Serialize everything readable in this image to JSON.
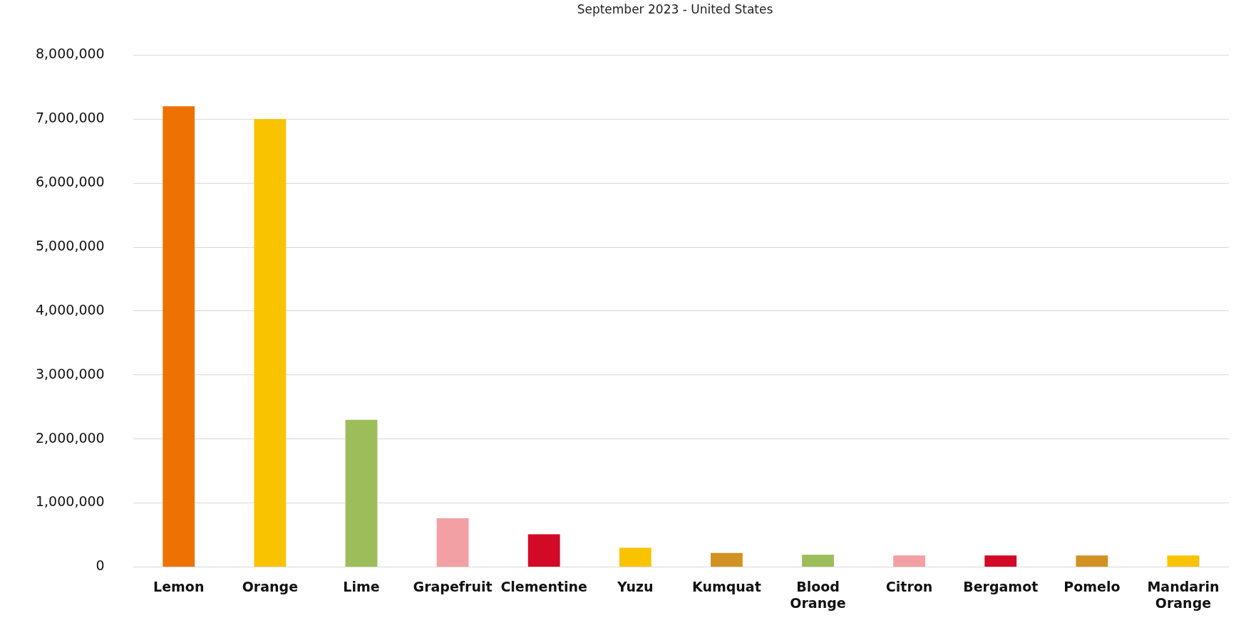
{
  "chart_data": {
    "type": "bar",
    "title": "September 2023 - United States",
    "categories": [
      "Lemon",
      "Orange",
      "Lime",
      "Grapefruit",
      "Clementine",
      "Yuzu",
      "Kumquat",
      "Blood Orange",
      "Citron",
      "Bergamot",
      "Pomelo",
      "Mandarin Orange"
    ],
    "values": [
      7200000,
      7000000,
      2300000,
      760000,
      510000,
      300000,
      220000,
      190000,
      180000,
      180000,
      180000,
      180000
    ],
    "colors": [
      "#ee7203",
      "#fac300",
      "#9dbd5a",
      "#f2a0a3",
      "#d20a26",
      "#fac300",
      "#d29223",
      "#9dbd5a",
      "#f2a0a3",
      "#d20a26",
      "#d29223",
      "#fac300"
    ],
    "ylim": [
      0,
      8000000
    ],
    "yticks": [
      {
        "value": 0,
        "label": "0"
      },
      {
        "value": 1000000,
        "label": "1,000,000"
      },
      {
        "value": 2000000,
        "label": "2,000,000"
      },
      {
        "value": 3000000,
        "label": "3,000,000"
      },
      {
        "value": 4000000,
        "label": "4,000,000"
      },
      {
        "value": 5000000,
        "label": "5,000,000"
      },
      {
        "value": 6000000,
        "label": "6,000,000"
      },
      {
        "value": 7000000,
        "label": "7,000,000"
      },
      {
        "value": 8000000,
        "label": "8,000,000"
      }
    ],
    "grid": "y",
    "legend": false
  }
}
